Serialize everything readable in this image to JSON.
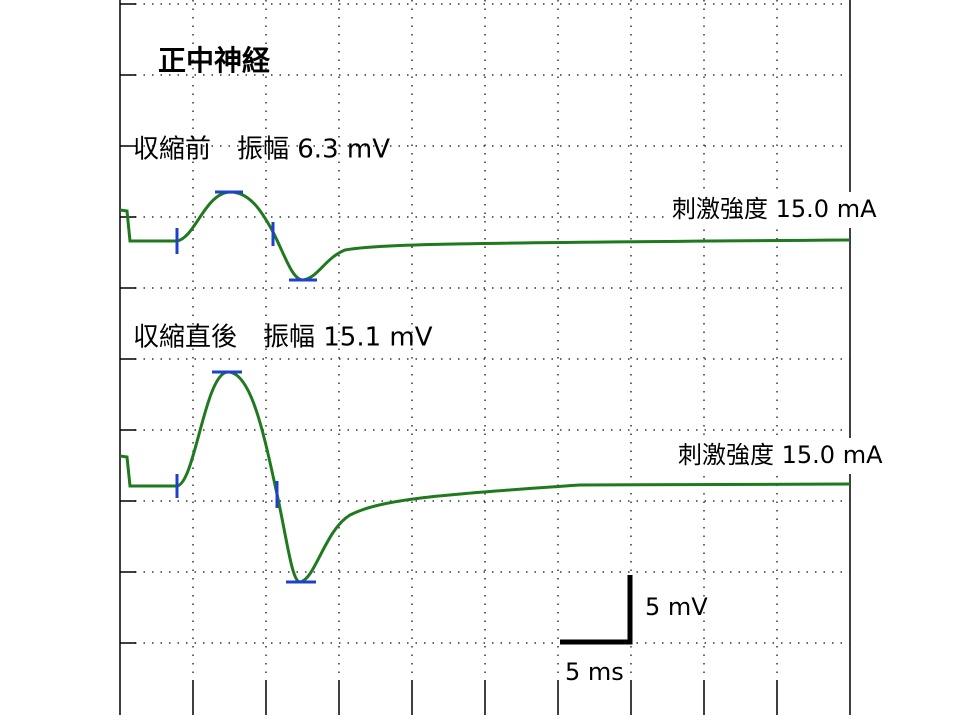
{
  "title": "正中神経",
  "traces": [
    {
      "label": "収縮前　振幅 6.3 mV",
      "stimulus": "刺激強度 15.0 mA"
    },
    {
      "label": "収縮直後　振幅 15.1 mV",
      "stimulus": "刺激強度 15.0 mA"
    }
  ],
  "scale": {
    "amplitude": "5 mV",
    "time": "5 ms"
  }
}
